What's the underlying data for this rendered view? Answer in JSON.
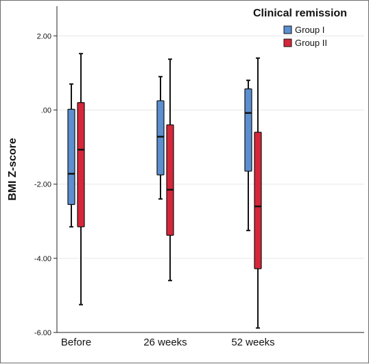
{
  "chart_data": {
    "type": "box",
    "ylabel": "BMI Z-score",
    "xlabel": "",
    "ylim": [
      -6,
      2.8
    ],
    "yticks": [
      -6,
      -4,
      -2,
      0,
      2
    ],
    "ytick_labels": [
      "-6.00",
      "-4.00",
      "-2.00",
      ".00",
      "2.00"
    ],
    "grid": "horizontal",
    "categories": [
      "Before",
      "26 weeks",
      "52 weeks"
    ],
    "legend": {
      "title": "Clinical remission",
      "position": "top-right"
    },
    "colors": {
      "Group I": "#5b8fcf",
      "Group II": "#d6263a"
    },
    "series": [
      {
        "name": "Group I",
        "boxes": [
          {
            "min": -3.15,
            "q1": -2.55,
            "median": -1.72,
            "q3": 0.02,
            "max": 0.7
          },
          {
            "min": -2.4,
            "q1": -1.75,
            "median": -0.72,
            "q3": 0.25,
            "max": 0.9
          },
          {
            "min": -3.25,
            "q1": -1.65,
            "median": -0.08,
            "q3": 0.57,
            "max": 0.8
          }
        ]
      },
      {
        "name": "Group II",
        "boxes": [
          {
            "min": -5.25,
            "q1": -3.15,
            "median": -1.07,
            "q3": 0.2,
            "max": 1.52
          },
          {
            "min": -4.6,
            "q1": -3.38,
            "median": -2.15,
            "q3": -0.4,
            "max": 1.37
          },
          {
            "min": -5.88,
            "q1": -4.28,
            "median": -2.6,
            "q3": -0.6,
            "max": 1.4
          }
        ]
      }
    ]
  }
}
